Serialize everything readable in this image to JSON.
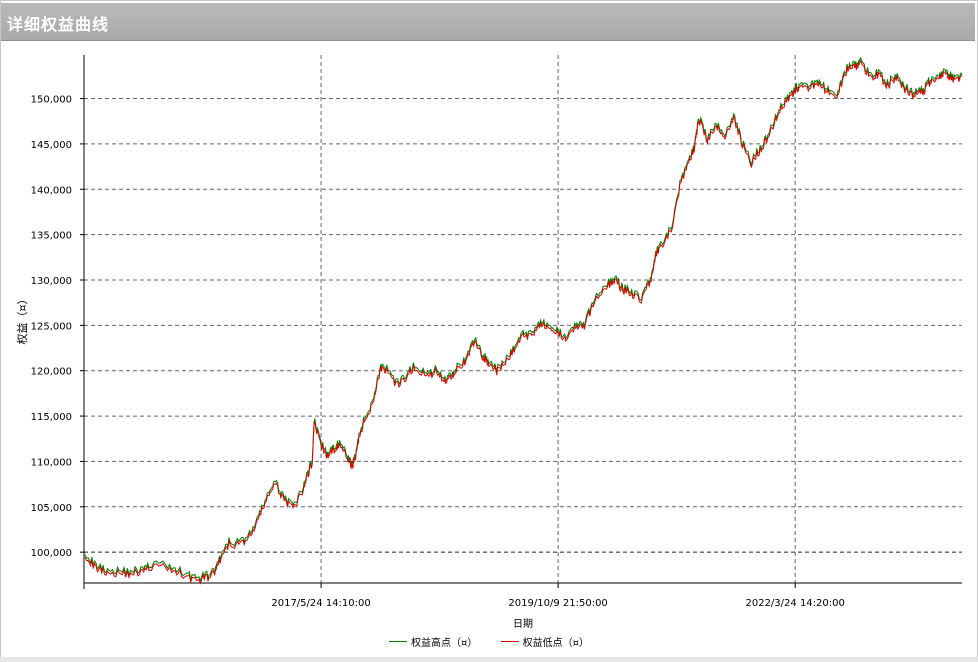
{
  "window": {
    "title": "详细权益曲线"
  },
  "chart_data": {
    "type": "line",
    "xlabel": "日期",
    "ylabel": "权益（¤）",
    "x_ticks": [
      "2017/5/24 14:10:00",
      "2019/10/9 21:50:00",
      "2022/3/24 14:20:00"
    ],
    "y_ticks": [
      "100,000",
      "105,000",
      "110,000",
      "115,000",
      "120,000",
      "125,000",
      "130,000",
      "135,000",
      "140,000",
      "145,000",
      "150,000"
    ],
    "ylim": [
      96600,
      154800
    ],
    "grid": true,
    "legend_position": "bottom-center",
    "series": [
      {
        "name": "权益高点（¤）",
        "color": "#008000"
      },
      {
        "name": "权益低点（¤）",
        "color": "#e00000"
      }
    ],
    "x_tick_index": [
      0.27,
      0.54,
      0.81
    ],
    "x": [
      0,
      0.012,
      0.025,
      0.04,
      0.055,
      0.068,
      0.08,
      0.1,
      0.115,
      0.128,
      0.14,
      0.15,
      0.155,
      0.165,
      0.178,
      0.19,
      0.2,
      0.21,
      0.218,
      0.228,
      0.238,
      0.25,
      0.255,
      0.26,
      0.262,
      0.27,
      0.278,
      0.285,
      0.29,
      0.3,
      0.305,
      0.31,
      0.315,
      0.322,
      0.33,
      0.338,
      0.345,
      0.355,
      0.365,
      0.375,
      0.39,
      0.4,
      0.41,
      0.418,
      0.425,
      0.435,
      0.445,
      0.455,
      0.462,
      0.47,
      0.48,
      0.49,
      0.5,
      0.51,
      0.52,
      0.53,
      0.54,
      0.55,
      0.56,
      0.57,
      0.58,
      0.595,
      0.605,
      0.615,
      0.625,
      0.635,
      0.645,
      0.652,
      0.66,
      0.67,
      0.68,
      0.688,
      0.695,
      0.7,
      0.71,
      0.72,
      0.73,
      0.74,
      0.75,
      0.76,
      0.77,
      0.78,
      0.79,
      0.8,
      0.81,
      0.815,
      0.825,
      0.835,
      0.845,
      0.855,
      0.862,
      0.87,
      0.878,
      0.885,
      0.895,
      0.905,
      0.915,
      0.925,
      0.935,
      0.945,
      0.955,
      0.962,
      0.97,
      0.978,
      0.985,
      0.993,
      1.0
    ],
    "values": [
      100000,
      98500,
      98000,
      97800,
      97800,
      98000,
      98700,
      98200,
      97600,
      97000,
      97300,
      98000,
      99200,
      101000,
      101000,
      102000,
      104000,
      106500,
      107500,
      106000,
      104800,
      107000,
      108700,
      110000,
      114500,
      112000,
      110500,
      111500,
      112000,
      110500,
      109500,
      111000,
      113500,
      115000,
      117000,
      120500,
      120000,
      118500,
      119000,
      120500,
      119500,
      120000,
      119000,
      119500,
      120500,
      121000,
      123500,
      121500,
      121000,
      120000,
      121000,
      122500,
      124000,
      124000,
      125500,
      124500,
      124200,
      123800,
      125000,
      125000,
      127500,
      129500,
      130000,
      129000,
      128500,
      128000,
      130000,
      133000,
      134000,
      136000,
      141000,
      143000,
      144500,
      148000,
      145500,
      147000,
      146000,
      148000,
      145000,
      143000,
      144500,
      146000,
      148500,
      150000,
      151000,
      151500,
      151000,
      152000,
      151000,
      150000,
      151500,
      153500,
      153500,
      154000,
      152500,
      152800,
      151500,
      152500,
      151200,
      150500,
      150800,
      151800,
      152500,
      152800,
      152500,
      152000,
      152500
    ]
  }
}
